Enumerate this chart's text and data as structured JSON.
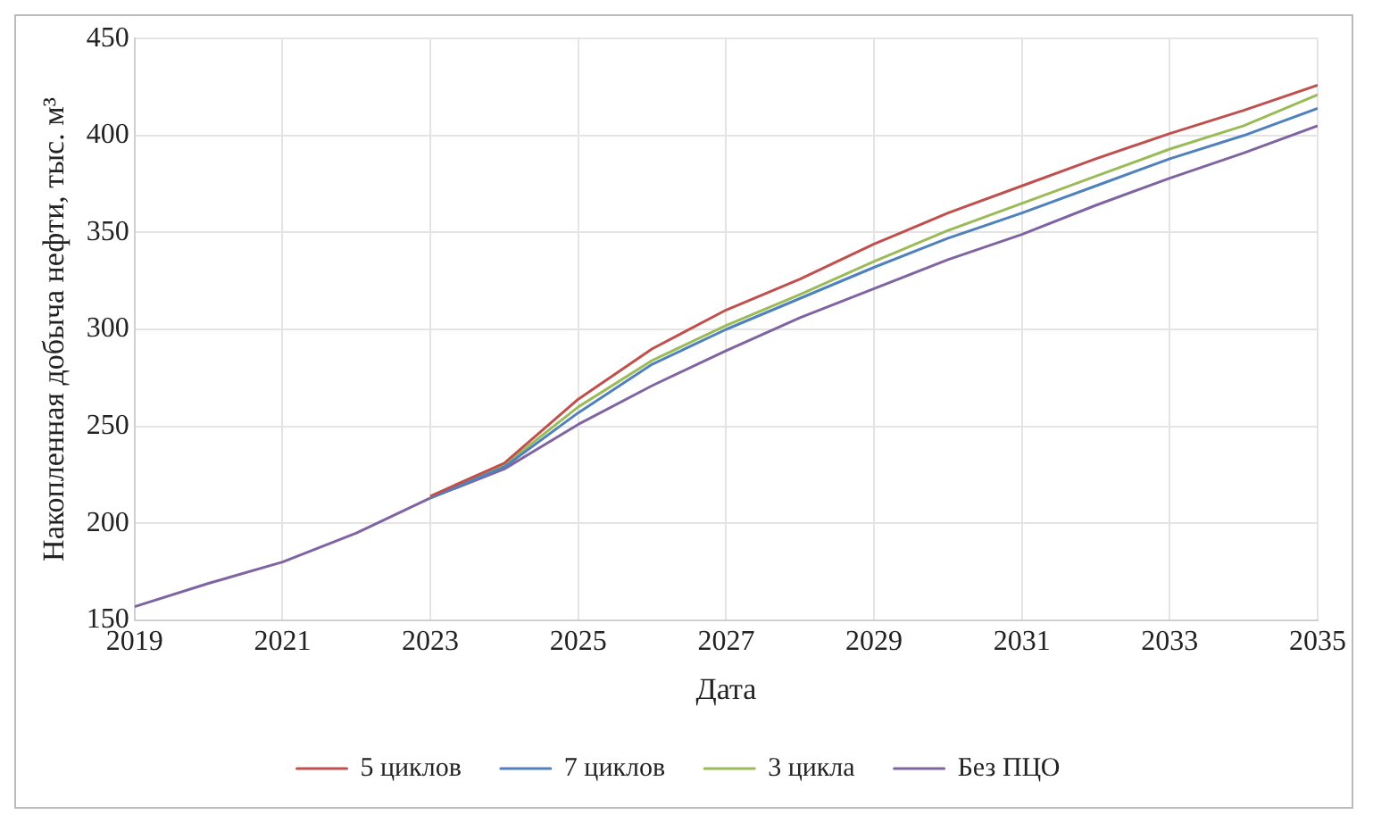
{
  "chart_data": {
    "type": "line",
    "xlabel": "Дата",
    "ylabel": "Накопленная добыча нефти, тыс. м³",
    "x": [
      2019,
      2020,
      2021,
      2022,
      2023,
      2024,
      2025,
      2026,
      2027,
      2028,
      2029,
      2030,
      2031,
      2032,
      2033,
      2034,
      2035
    ],
    "xlim": [
      2019,
      2035
    ],
    "xticks": [
      2019,
      2021,
      2023,
      2025,
      2027,
      2029,
      2031,
      2033,
      2035
    ],
    "ylim": [
      150,
      450
    ],
    "yticks": [
      150,
      200,
      250,
      300,
      350,
      400,
      450
    ],
    "grid": true,
    "legend": "bottom",
    "marker": "none",
    "line_style": "solid",
    "series": [
      {
        "name": "5 циклов",
        "color": "#c0504d",
        "values": [
          null,
          null,
          null,
          null,
          214,
          231,
          264,
          290,
          310,
          326,
          344,
          360,
          374,
          388,
          401,
          413,
          426
        ]
      },
      {
        "name": "7 циклов",
        "color": "#4f81bd",
        "values": [
          null,
          null,
          null,
          null,
          213,
          229,
          257,
          282,
          300,
          316,
          332,
          347,
          360,
          374,
          388,
          400,
          414
        ]
      },
      {
        "name": "3 цикла",
        "color": "#9bbb59",
        "values": [
          null,
          null,
          null,
          null,
          213,
          230,
          260,
          284,
          302,
          318,
          335,
          351,
          365,
          379,
          393,
          405,
          421
        ]
      },
      {
        "name": "Без ПЦО",
        "color": "#8064a2",
        "values": [
          157,
          169,
          180,
          195,
          213,
          228,
          251,
          271,
          289,
          306,
          321,
          336,
          349,
          364,
          378,
          391,
          405
        ]
      }
    ]
  }
}
